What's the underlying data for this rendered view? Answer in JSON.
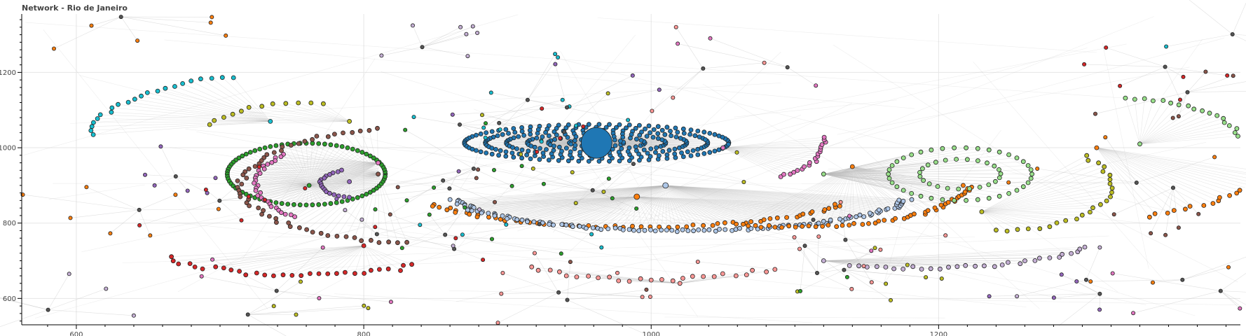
{
  "chart_data": {
    "type": "scatter",
    "subtype": "network-graph",
    "title": "Network - Rio de Janeiro",
    "xlabel": "",
    "ylabel": "",
    "xlim": [
      562,
      1410
    ],
    "ylim": [
      530,
      1355
    ],
    "x_ticks": [
      600,
      800,
      1000,
      1200
    ],
    "y_ticks": [
      600,
      800,
      1000,
      1200
    ],
    "grid": true,
    "legend": "none",
    "edge_color": "#bbbbbb",
    "node_outline": "#222222",
    "clusters": [
      {
        "shape": "ellipse",
        "cx": 962,
        "cy": 1013,
        "rx": 92,
        "ry": 49,
        "rings": 6,
        "count": 300,
        "color": "#1f77b4",
        "hub": [
          962,
          1013
        ],
        "hub_size": 22
      },
      {
        "shape": "ellipse",
        "cx": 760,
        "cy": 930,
        "rx": 55,
        "ry": 82,
        "rings": 1,
        "count": 80,
        "color": "#2ca02c",
        "hub": [
          762,
          900
        ],
        "hub_size": 3
      },
      {
        "shape": "arc",
        "cx": 830,
        "cy": 900,
        "rx": 115,
        "ry": 150,
        "a0": 100,
        "a1": 270,
        "count": 55,
        "color": "#8c564b",
        "hub": [
          810,
          930
        ],
        "hub_size": 3
      },
      {
        "shape": "arc",
        "cx": 780,
        "cy": 905,
        "rx": 55,
        "ry": 100,
        "a0": 130,
        "a1": 240,
        "count": 30,
        "color": "#e377c2",
        "hub": [
          810,
          960
        ],
        "hub_size": 3
      },
      {
        "shape": "arc",
        "cx": 800,
        "cy": 905,
        "rx": 30,
        "ry": 40,
        "a0": 120,
        "a1": 250,
        "count": 18,
        "color": "#9467bd",
        "hub": [
          790,
          910
        ],
        "hub_size": 3
      },
      {
        "shape": "arc",
        "cx": 730,
        "cy": 1020,
        "rx": 120,
        "ry": 170,
        "a0": 100,
        "a1": 175,
        "count": 22,
        "color": "#17becf",
        "hub": [
          735,
          1070
        ],
        "hub_size": 3
      },
      {
        "shape": "arc",
        "cx": 760,
        "cy": 1030,
        "rx": 70,
        "ry": 90,
        "a0": 80,
        "a1": 160,
        "count": 12,
        "color": "#bcbd22",
        "hub": [
          790,
          1070
        ],
        "hub_size": 3
      },
      {
        "shape": "arc",
        "cx": 990,
        "cy": 880,
        "rx": 150,
        "ry": 90,
        "a0": 200,
        "a1": 340,
        "count": 60,
        "color": "#ff7f0e",
        "hub": [
          990,
          870
        ],
        "hub_size": 4
      },
      {
        "shape": "arc",
        "cx": 1020,
        "cy": 880,
        "rx": 160,
        "ry": 100,
        "a0": 190,
        "a1": 350,
        "count": 120,
        "color": "#aec7e8",
        "hub": [
          1010,
          900
        ],
        "hub_size": 4
      },
      {
        "shape": "arc",
        "cx": 1100,
        "cy": 900,
        "rx": 120,
        "ry": 110,
        "a0": 250,
        "a1": 360,
        "count": 50,
        "color": "#ff7f0e",
        "hub": [
          1140,
          950
        ],
        "hub_size": 3
      },
      {
        "shape": "ellipse",
        "cx": 1215,
        "cy": 930,
        "rx": 50,
        "ry": 70,
        "rings": 2,
        "count": 60,
        "color": "#98df8a",
        "hub": [
          1120,
          930
        ],
        "hub_size": 3
      },
      {
        "shape": "arc",
        "cx": 1060,
        "cy": 1010,
        "rx": 60,
        "ry": 100,
        "a0": 300,
        "a1": 370,
        "count": 20,
        "color": "#e377c2",
        "hub": [
          1050,
          1000
        ],
        "hub_size": 3
      },
      {
        "shape": "arc",
        "cx": 760,
        "cy": 860,
        "rx": 150,
        "ry": 200,
        "a0": 230,
        "a1": 300,
        "count": 30,
        "color": "#d62728",
        "hub": [
          800,
          740
        ],
        "hub_size": 3
      },
      {
        "shape": "arc",
        "cx": 1000,
        "cy": 870,
        "rx": 170,
        "ry": 220,
        "a0": 240,
        "a1": 300,
        "count": 25,
        "color": "#ff9896",
        "hub": [
          1020,
          640
        ],
        "hub_size": 3
      },
      {
        "shape": "arc",
        "cx": 1190,
        "cy": 830,
        "rx": 150,
        "ry": 150,
        "a0": 250,
        "a1": 320,
        "count": 30,
        "color": "#c5b0d5",
        "hub": [
          1120,
          700
        ],
        "hub_size": 3
      },
      {
        "shape": "arc",
        "cx": 1240,
        "cy": 900,
        "rx": 80,
        "ry": 120,
        "a0": 270,
        "a1": 400,
        "count": 25,
        "color": "#bcbd22",
        "hub": [
          1230,
          830
        ],
        "hub_size": 3
      },
      {
        "shape": "arc",
        "cx": 1270,
        "cy": 940,
        "rx": 150,
        "ry": 140,
        "a0": 300,
        "a1": 360,
        "count": 20,
        "color": "#ff7f0e",
        "hub": [
          1310,
          1000
        ],
        "hub_size": 3
      },
      {
        "shape": "arc",
        "cx": 1330,
        "cy": 1010,
        "rx": 80,
        "ry": 120,
        "a0": 10,
        "a1": 90,
        "count": 18,
        "color": "#98df8a",
        "hub": [
          1340,
          1010
        ],
        "hub_size": 3
      }
    ],
    "scatter_color_palette": [
      "#ff7f0e",
      "#e377c2",
      "#d62728",
      "#9467bd",
      "#ff9896",
      "#8c564b",
      "#17becf",
      "#bcbd22",
      "#c5b0d5",
      "#2ca02c"
    ]
  }
}
